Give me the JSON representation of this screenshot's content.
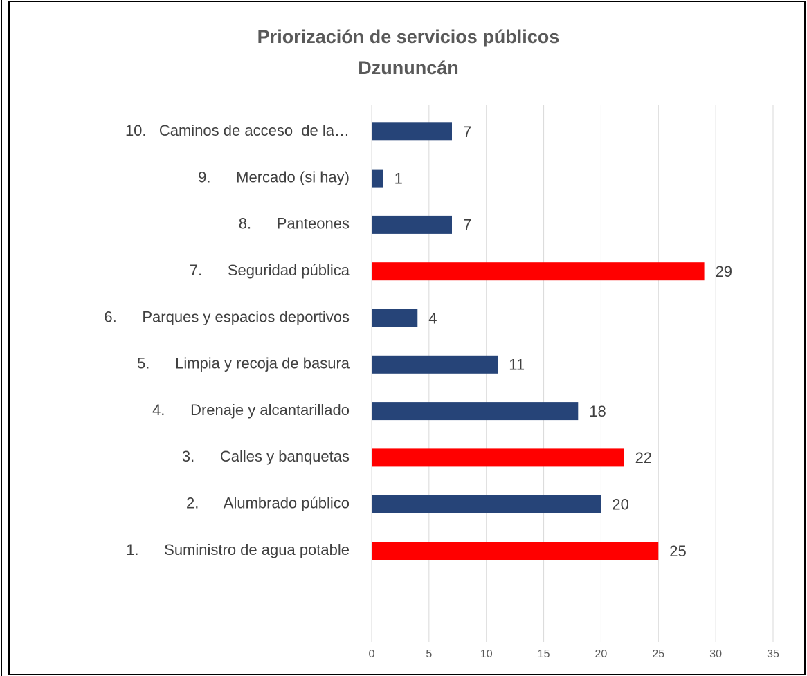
{
  "chart_data": {
    "type": "bar",
    "orientation": "horizontal",
    "title": "Priorización de servicios públicos",
    "subtitle": "Dzununcán",
    "categories": [
      "1.      Suministro de agua potable",
      "2.      Alumbrado público",
      "3.      Calles y banquetas",
      "4.      Drenaje y alcantarillado",
      "5.      Limpia y recoja de basura",
      "6.      Parques y espacios deportivos",
      "7.      Seguridad pública",
      "8.      Panteones",
      "9.      Mercado (si hay)",
      "10.   Caminos de acceso  de la…"
    ],
    "values": [
      25,
      20,
      22,
      18,
      11,
      4,
      29,
      7,
      1,
      7
    ],
    "colors": [
      "#ff0000",
      "#264478",
      "#ff0000",
      "#264478",
      "#264478",
      "#264478",
      "#ff0000",
      "#264478",
      "#264478",
      "#264478"
    ],
    "xlim": [
      0,
      35
    ],
    "xticks": [
      0,
      5,
      10,
      15,
      20,
      25,
      30,
      35
    ],
    "grid": true
  }
}
